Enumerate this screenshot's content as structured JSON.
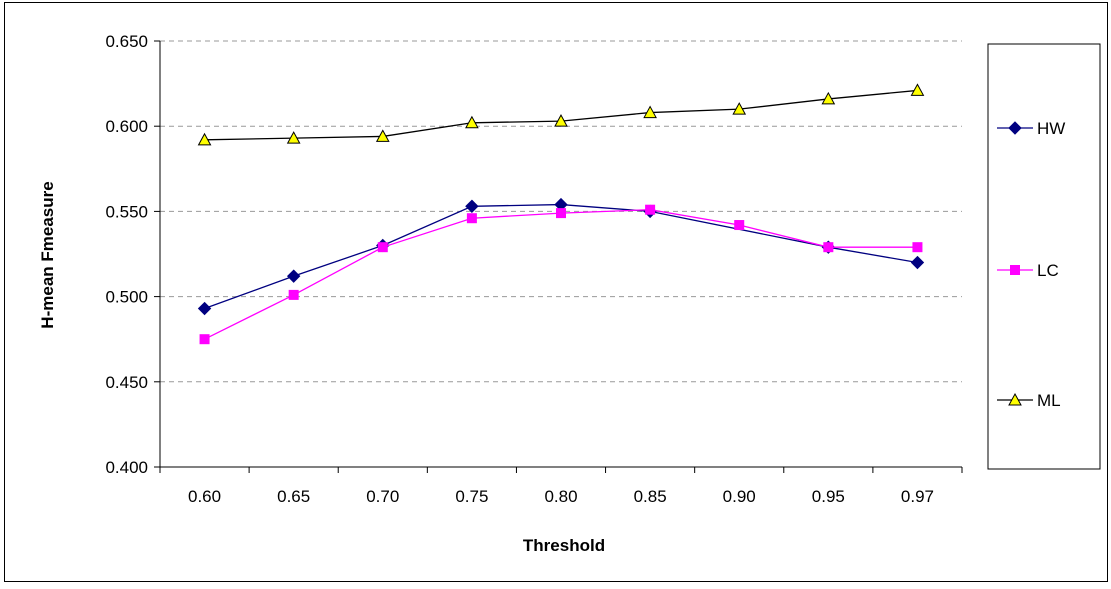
{
  "chart_data": {
    "type": "line",
    "categories": [
      "0.60",
      "0.65",
      "0.70",
      "0.75",
      "0.80",
      "0.85",
      "0.90",
      "0.95",
      "0.97"
    ],
    "series": [
      {
        "name": "HW",
        "color": "#000080",
        "marker": "diamond",
        "values": [
          0.493,
          0.512,
          0.53,
          0.553,
          0.554,
          0.55,
          null,
          0.529,
          0.52
        ]
      },
      {
        "name": "LC",
        "color": "#FF00FF",
        "marker": "square",
        "values": [
          0.475,
          0.501,
          0.529,
          0.546,
          0.549,
          0.551,
          0.542,
          0.529,
          0.529
        ]
      },
      {
        "name": "ML",
        "color": "#000000",
        "marker": "triangle",
        "marker_fill": "#FFFF00",
        "values": [
          0.592,
          0.593,
          0.594,
          0.602,
          0.603,
          0.608,
          0.61,
          0.616,
          0.621
        ]
      }
    ],
    "xlabel": "Threshold",
    "ylabel": "H-mean Fmeasure",
    "ylim": [
      0.4,
      0.65
    ],
    "yticks": [
      "0.400",
      "0.450",
      "0.500",
      "0.550",
      "0.600",
      "0.650"
    ],
    "grid": "horizontal dashed",
    "legend_position": "right"
  }
}
